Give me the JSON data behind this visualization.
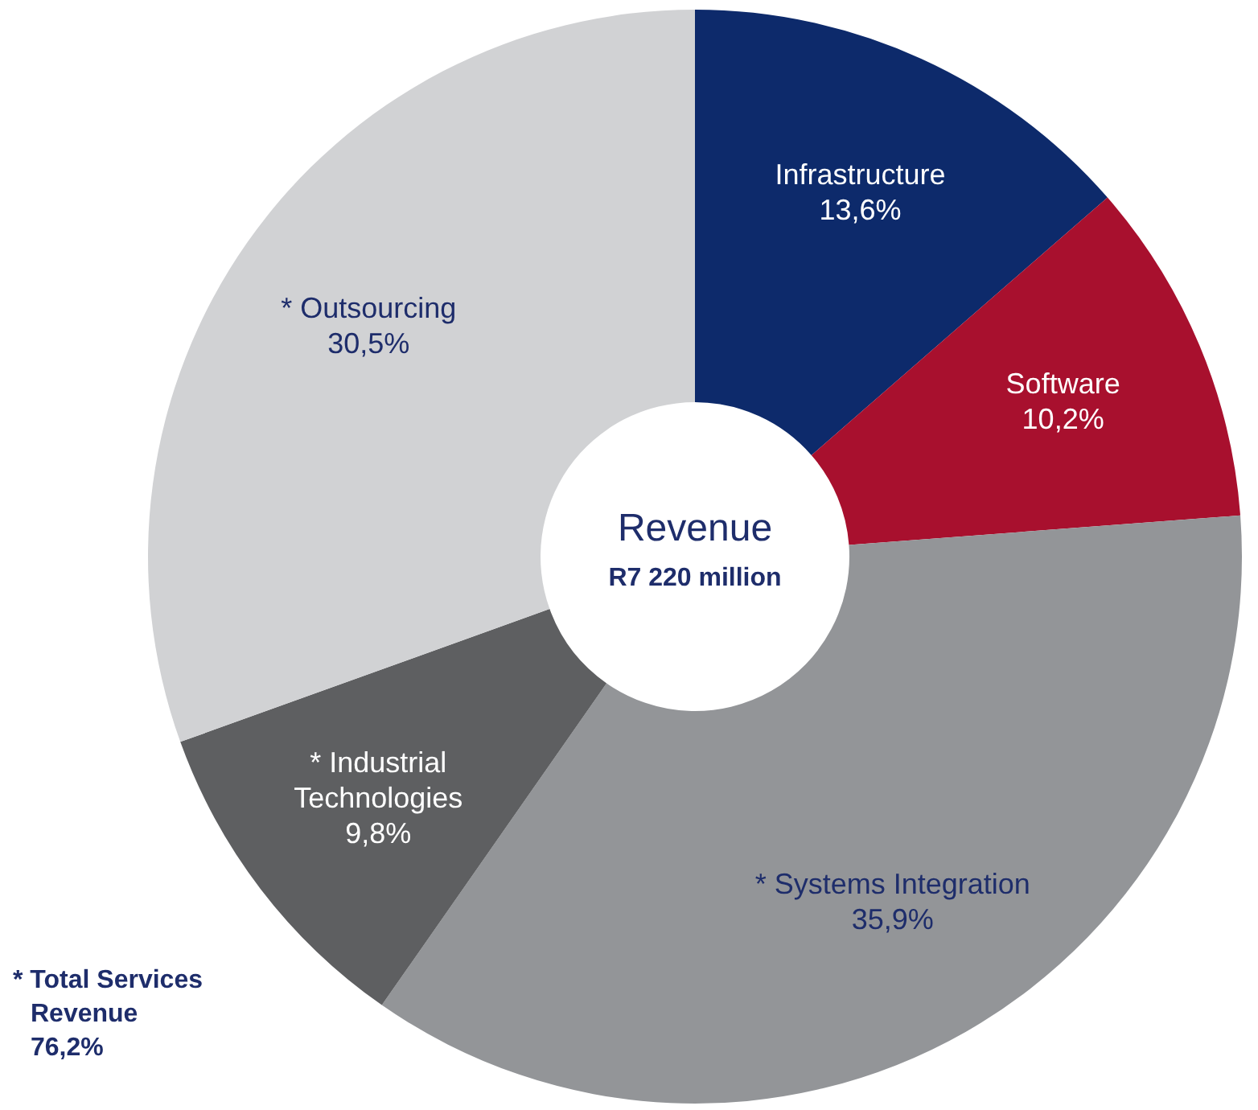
{
  "chart_data": {
    "type": "donut",
    "title": "Revenue",
    "subtitle": "R7 220 million",
    "categories": [
      "Infrastructure",
      "Software",
      "* Systems Integration",
      "* Industrial Technologies",
      "* Outsourcing"
    ],
    "values": [
      13.6,
      10.2,
      35.9,
      9.8,
      30.5
    ],
    "colors": [
      "#0d2a6b",
      "#a8102e",
      "#939598",
      "#5e5f61",
      "#d1d2d4"
    ],
    "value_labels": [
      "13,6%",
      "10,2%",
      "35,9%",
      "9,8%",
      "30,5%"
    ],
    "annotations": [
      "* Total Services\nRevenue\n76,2%"
    ]
  }
}
